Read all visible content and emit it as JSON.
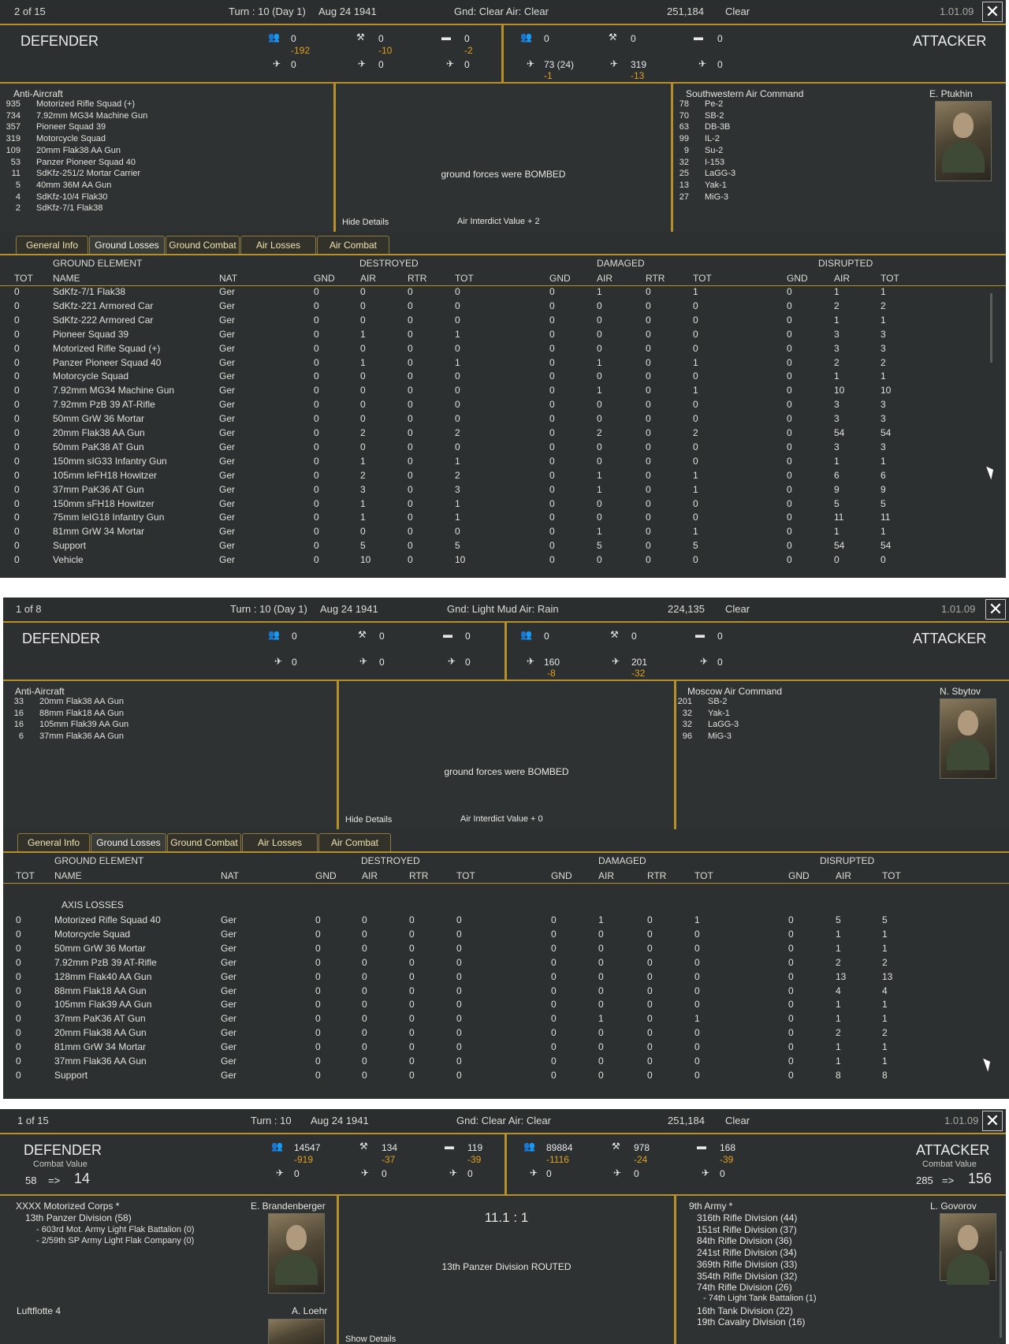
{
  "panels": [
    {
      "counter": "2 of 15",
      "turn": "Turn : 10 (Day 1)",
      "date": "Aug 24 1941",
      "weather": "Gnd: Clear  Air: Clear",
      "hex": "251,184",
      "terrain": "Clear",
      "version": "1.01.09",
      "defender_label": "DEFENDER",
      "attacker_label": "ATTACKER",
      "def_counts": {
        "men": "0",
        "men_delta": "-192",
        "guns": "0",
        "guns_delta": "-10",
        "afv": "0",
        "afv_delta": "-2",
        "fighters": "0",
        "bombers": "0",
        "recon": "0"
      },
      "att_counts": {
        "men": "0",
        "guns": "0",
        "afv": "0",
        "fighters": "73 (24)",
        "fighters_delta": "-1",
        "bombers": "319",
        "bombers_delta": "-13",
        "recon": "0"
      },
      "left_title": "Anti-Aircraft",
      "left_list": [
        {
          "n": "935",
          "t": "Motorized Rifle Squad (+)"
        },
        {
          "n": "734",
          "t": "7.92mm MG34 Machine Gun"
        },
        {
          "n": "357",
          "t": "Pioneer Squad 39"
        },
        {
          "n": "319",
          "t": "Motorcycle Squad"
        },
        {
          "n": "109",
          "t": "20mm Flak38 AA Gun"
        },
        {
          "n": "53",
          "t": "Panzer Pioneer Squad 40"
        },
        {
          "n": "11",
          "t": "SdKfz-251/2 Mortar Carrier"
        },
        {
          "n": "5",
          "t": "40mm 36M AA Gun"
        },
        {
          "n": "4",
          "t": "SdKfz-10/4 Flak30"
        },
        {
          "n": "2",
          "t": "SdKfz-7/1 Flak38"
        }
      ],
      "center_msg": "ground forces were BOMBED",
      "details_link": "Hide Details",
      "interdict": "Air Interdict Value  + 2",
      "right_title": "Southwestern Air Command",
      "commander": "E. Ptukhin",
      "right_list": [
        {
          "n": "78",
          "t": "Pe-2"
        },
        {
          "n": "70",
          "t": "SB-2"
        },
        {
          "n": "63",
          "t": "DB-3B"
        },
        {
          "n": "99",
          "t": "IL-2"
        },
        {
          "n": "9",
          "t": "Su-2"
        },
        {
          "n": "32",
          "t": "I-153"
        },
        {
          "n": "25",
          "t": "LaGG-3"
        },
        {
          "n": "13",
          "t": "Yak-1"
        },
        {
          "n": "27",
          "t": "MiG-3"
        }
      ],
      "section_label": "",
      "rows": [
        [
          "0",
          "SdKfz-7/1 Flak38",
          "Ger",
          "0",
          "0",
          "0",
          "0",
          "0",
          "1",
          "0",
          "1",
          "0",
          "1",
          "1"
        ],
        [
          "0",
          "SdKfz-221 Armored Car",
          "Ger",
          "0",
          "0",
          "0",
          "0",
          "0",
          "0",
          "0",
          "0",
          "0",
          "2",
          "2"
        ],
        [
          "0",
          "SdKfz-222 Armored Car",
          "Ger",
          "0",
          "0",
          "0",
          "0",
          "0",
          "0",
          "0",
          "0",
          "0",
          "1",
          "1"
        ],
        [
          "0",
          "Pioneer Squad 39",
          "Ger",
          "0",
          "1",
          "0",
          "1",
          "0",
          "0",
          "0",
          "0",
          "0",
          "3",
          "3"
        ],
        [
          "0",
          "Motorized Rifle Squad (+)",
          "Ger",
          "0",
          "0",
          "0",
          "0",
          "0",
          "0",
          "0",
          "0",
          "0",
          "3",
          "3"
        ],
        [
          "0",
          "Panzer Pioneer Squad 40",
          "Ger",
          "0",
          "1",
          "0",
          "1",
          "0",
          "1",
          "0",
          "1",
          "0",
          "2",
          "2"
        ],
        [
          "0",
          "Motorcycle Squad",
          "Ger",
          "0",
          "0",
          "0",
          "0",
          "0",
          "0",
          "0",
          "0",
          "0",
          "1",
          "1"
        ],
        [
          "0",
          "7.92mm MG34 Machine Gun",
          "Ger",
          "0",
          "0",
          "0",
          "0",
          "0",
          "1",
          "0",
          "1",
          "0",
          "10",
          "10"
        ],
        [
          "0",
          "7.92mm PzB 39 AT-Rifle",
          "Ger",
          "0",
          "0",
          "0",
          "0",
          "0",
          "0",
          "0",
          "0",
          "0",
          "3",
          "3"
        ],
        [
          "0",
          "50mm GrW 36 Mortar",
          "Ger",
          "0",
          "0",
          "0",
          "0",
          "0",
          "0",
          "0",
          "0",
          "0",
          "3",
          "3"
        ],
        [
          "0",
          "20mm Flak38 AA Gun",
          "Ger",
          "0",
          "2",
          "0",
          "2",
          "0",
          "2",
          "0",
          "2",
          "0",
          "54",
          "54"
        ],
        [
          "0",
          "50mm PaK38 AT Gun",
          "Ger",
          "0",
          "0",
          "0",
          "0",
          "0",
          "0",
          "0",
          "0",
          "0",
          "3",
          "3"
        ],
        [
          "0",
          "150mm sIG33 Infantry Gun",
          "Ger",
          "0",
          "1",
          "0",
          "1",
          "0",
          "0",
          "0",
          "0",
          "0",
          "1",
          "1"
        ],
        [
          "0",
          "105mm leFH18 Howitzer",
          "Ger",
          "0",
          "2",
          "0",
          "2",
          "0",
          "1",
          "0",
          "1",
          "0",
          "6",
          "6"
        ],
        [
          "0",
          "37mm PaK36 AT Gun",
          "Ger",
          "0",
          "3",
          "0",
          "3",
          "0",
          "1",
          "0",
          "1",
          "0",
          "9",
          "9"
        ],
        [
          "0",
          "150mm sFH18 Howitzer",
          "Ger",
          "0",
          "1",
          "0",
          "1",
          "0",
          "0",
          "0",
          "0",
          "0",
          "5",
          "5"
        ],
        [
          "0",
          "75mm leIG18 Infantry Gun",
          "Ger",
          "0",
          "1",
          "0",
          "1",
          "0",
          "0",
          "0",
          "0",
          "0",
          "11",
          "11"
        ],
        [
          "0",
          "81mm GrW 34 Mortar",
          "Ger",
          "0",
          "0",
          "0",
          "0",
          "0",
          "1",
          "0",
          "1",
          "0",
          "1",
          "1"
        ],
        [
          "0",
          "Support",
          "Ger",
          "0",
          "5",
          "0",
          "5",
          "0",
          "5",
          "0",
          "5",
          "0",
          "54",
          "54"
        ],
        [
          "0",
          "Vehicle",
          "Ger",
          "0",
          "10",
          "0",
          "10",
          "0",
          "0",
          "0",
          "0",
          "0",
          "0",
          "0"
        ]
      ]
    },
    {
      "counter": "1 of 8",
      "turn": "Turn : 10 (Day 1)",
      "date": "Aug 24 1941",
      "weather": "Gnd: Light Mud  Air: Rain",
      "hex": "224,135",
      "terrain": "Clear",
      "version": "1.01.09",
      "defender_label": "DEFENDER",
      "attacker_label": "ATTACKER",
      "def_counts": {
        "men": "0",
        "men_delta": "",
        "guns": "0",
        "guns_delta": "",
        "afv": "0",
        "afv_delta": "",
        "fighters": "0",
        "bombers": "0",
        "recon": "0"
      },
      "att_counts": {
        "men": "0",
        "guns": "0",
        "afv": "0",
        "fighters": "160",
        "fighters_delta": "-8",
        "bombers": "201",
        "bombers_delta": "-32",
        "recon": "0"
      },
      "left_title": "Anti-Aircraft",
      "left_list": [
        {
          "n": "33",
          "t": "20mm Flak38 AA Gun"
        },
        {
          "n": "16",
          "t": "88mm Flak18 AA Gun"
        },
        {
          "n": "16",
          "t": "105mm Flak39 AA Gun"
        },
        {
          "n": "6",
          "t": "37mm Flak36 AA Gun"
        }
      ],
      "center_msg": "ground forces were BOMBED",
      "details_link": "Hide Details",
      "interdict": "Air Interdict Value  + 0",
      "right_title": "Moscow Air Command",
      "commander": "N. Sbytov",
      "right_list": [
        {
          "n": "201",
          "t": "SB-2"
        },
        {
          "n": "32",
          "t": "Yak-1"
        },
        {
          "n": "32",
          "t": "LaGG-3"
        },
        {
          "n": "96",
          "t": "MiG-3"
        }
      ],
      "section_label": "AXIS LOSSES",
      "rows": [
        [
          "0",
          "Motorized Rifle Squad 40",
          "Ger",
          "0",
          "0",
          "0",
          "0",
          "0",
          "1",
          "0",
          "1",
          "0",
          "5",
          "5"
        ],
        [
          "0",
          "Motorcycle Squad",
          "Ger",
          "0",
          "0",
          "0",
          "0",
          "0",
          "0",
          "0",
          "0",
          "0",
          "1",
          "1"
        ],
        [
          "0",
          "50mm GrW 36 Mortar",
          "Ger",
          "0",
          "0",
          "0",
          "0",
          "0",
          "0",
          "0",
          "0",
          "0",
          "1",
          "1"
        ],
        [
          "0",
          "7.92mm PzB 39 AT-Rifle",
          "Ger",
          "0",
          "0",
          "0",
          "0",
          "0",
          "0",
          "0",
          "0",
          "0",
          "2",
          "2"
        ],
        [
          "0",
          "128mm Flak40 AA Gun",
          "Ger",
          "0",
          "0",
          "0",
          "0",
          "0",
          "0",
          "0",
          "0",
          "0",
          "13",
          "13"
        ],
        [
          "0",
          "88mm Flak18 AA Gun",
          "Ger",
          "0",
          "0",
          "0",
          "0",
          "0",
          "0",
          "0",
          "0",
          "0",
          "4",
          "4"
        ],
        [
          "0",
          "105mm Flak39 AA Gun",
          "Ger",
          "0",
          "0",
          "0",
          "0",
          "0",
          "0",
          "0",
          "0",
          "0",
          "1",
          "1"
        ],
        [
          "0",
          "37mm PaK36 AT Gun",
          "Ger",
          "0",
          "0",
          "0",
          "0",
          "0",
          "1",
          "0",
          "1",
          "0",
          "1",
          "1"
        ],
        [
          "0",
          "20mm Flak38 AA Gun",
          "Ger",
          "0",
          "0",
          "0",
          "0",
          "0",
          "0",
          "0",
          "0",
          "0",
          "2",
          "2"
        ],
        [
          "0",
          "81mm GrW 34 Mortar",
          "Ger",
          "0",
          "0",
          "0",
          "0",
          "0",
          "0",
          "0",
          "0",
          "0",
          "1",
          "1"
        ],
        [
          "0",
          "37mm Flak36 AA Gun",
          "Ger",
          "0",
          "0",
          "0",
          "0",
          "0",
          "0",
          "0",
          "0",
          "0",
          "1",
          "1"
        ],
        [
          "0",
          "Support",
          "Ger",
          "0",
          "0",
          "0",
          "0",
          "0",
          "0",
          "0",
          "0",
          "0",
          "8",
          "8"
        ]
      ]
    },
    {
      "counter": "1 of 15",
      "turn": "Turn : 10",
      "date": "Aug 24 1941",
      "weather": "Gnd: Clear  Air: Clear",
      "hex": "251,184",
      "terrain": "Clear",
      "version": "1.01.09",
      "defender_label": "DEFENDER",
      "attacker_label": "ATTACKER",
      "combat_value_label": "Combat Value",
      "def_cv": {
        "from": "58",
        "arrow": "=>",
        "to": "14"
      },
      "att_cv": {
        "from": "285",
        "arrow": "=>",
        "to": "156"
      },
      "def_counts": {
        "men": "14547",
        "men_delta": "-919",
        "guns": "134",
        "guns_delta": "-37",
        "afv": "119",
        "afv_delta": "-39",
        "fighters": "0",
        "bombers": "0",
        "recon": "0"
      },
      "att_counts": {
        "men": "89884",
        "men_delta": "-1116",
        "guns": "978",
        "guns_delta": "-24",
        "afv": "168",
        "afv_delta": "-39",
        "fighters": "0",
        "bombers": "0",
        "recon": "0"
      },
      "left_title": "XXXX Motorized Corps *",
      "left_commander": "E. Brandenberger",
      "left_unit": "13th Panzer Division (58)",
      "left_subunits": [
        "- 603rd Mot. Army Light Flak Battalion (0)",
        "- 2/59th SP Army Light Flak Company (0)"
      ],
      "left_title2": "Luftflotte 4",
      "left_commander2": "A. Loehr",
      "odds": "11.1 : 1",
      "center_msg": "13th Panzer Division ROUTED",
      "details_link": "Show Details",
      "right_title": "9th Army *",
      "commander": "L. Govorov",
      "right_units": [
        "316th Rifle Division (44)",
        "151st Rifle Division (37)",
        "84th Rifle Division (36)",
        "241st Rifle Division (34)",
        "369th Rifle Division (33)",
        "354th Rifle Division (32)",
        "74th Rifle Division (26)",
        "- 74th Light Tank Battalion (1)",
        "16th Tank Division (22)",
        "19th Cavalry Division (16)"
      ]
    }
  ],
  "tabs": [
    "General Info",
    "Ground Losses",
    "Ground Combat",
    "Air Losses",
    "Air Combat"
  ],
  "group_headers": {
    "element": "GROUND ELEMENT",
    "destroyed": "DESTROYED",
    "damaged": "DAMAGED",
    "disrupted": "DISRUPTED"
  },
  "col_headers": [
    "TOT",
    "NAME",
    "NAT",
    "GND",
    "AIR",
    "RTR",
    "TOT",
    "GND",
    "AIR",
    "RTR",
    "TOT",
    "GND",
    "AIR",
    "TOT"
  ],
  "icons": {
    "men": "infantry-icon",
    "guns": "artillery-icon",
    "afv": "tank-icon",
    "fighters": "fighter-icon",
    "bombers": "bomber-icon",
    "recon": "recon-icon",
    "close": "close-icon"
  },
  "colors": {
    "accent": "#b8902a",
    "loss": "#e0a020",
    "background": "#2c3030"
  }
}
